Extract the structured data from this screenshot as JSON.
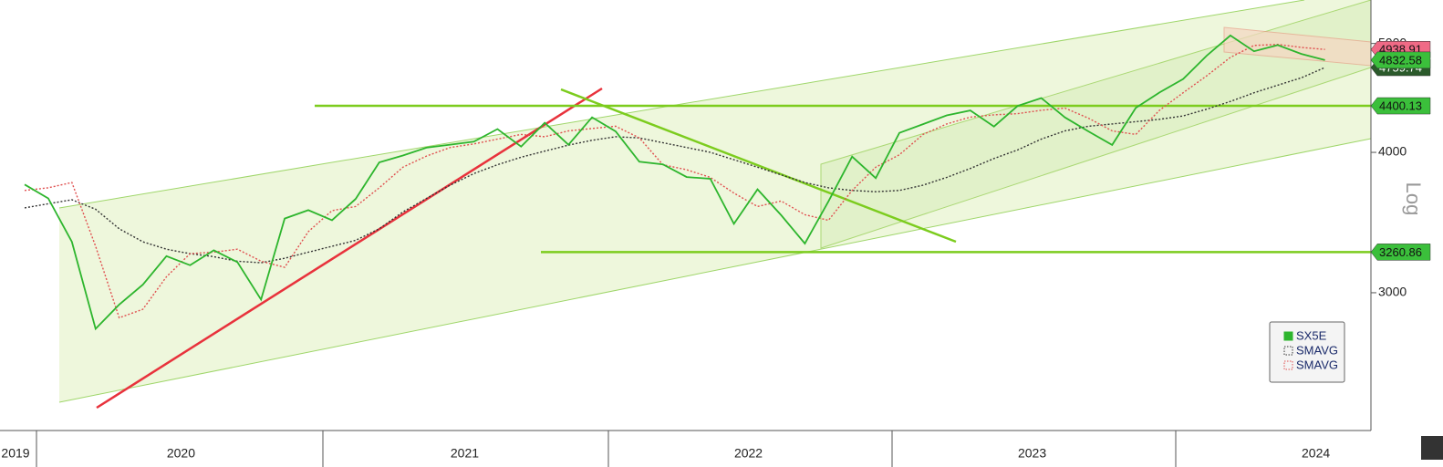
{
  "chart_data": {
    "type": "line",
    "y_label": "Log",
    "log_scale": true,
    "categories": [
      "2019",
      null,
      null,
      null,
      null,
      null,
      null,
      "2020",
      null,
      null,
      null,
      null,
      null,
      null,
      null,
      null,
      null,
      null,
      null,
      "2021",
      null,
      null,
      null,
      null,
      null,
      null,
      null,
      null,
      null,
      null,
      null,
      "2022",
      null,
      null,
      null,
      null,
      null,
      null,
      null,
      null,
      null,
      null,
      null,
      "2023",
      null,
      null,
      null,
      null,
      null,
      null,
      null,
      null,
      null,
      null,
      null,
      "2024"
    ],
    "series": [
      {
        "name": "SX5E",
        "color": "#2db52d",
        "values": [
          3745,
          3640,
          3330,
          2786,
          2928,
          3050,
          3234,
          3174,
          3273,
          3194,
          2958,
          3493,
          3553,
          3481,
          3636,
          3919,
          3974,
          4039,
          4064,
          4089,
          4196,
          4048,
          4250,
          4063,
          4298,
          4175,
          3924,
          3903,
          3803,
          3789,
          3455,
          3708,
          3517,
          3318,
          3618,
          3965,
          3794,
          4163,
          4238,
          4315,
          4359,
          4218,
          4399,
          4471,
          4297,
          4175,
          4061,
          4382,
          4522,
          4648,
          4877,
          5083,
          4921,
          4984,
          4894,
          4832.58
        ]
      },
      {
        "name": "SMAVG",
        "color": "#333333",
        "values": [
          3570,
          3600,
          3630,
          3560,
          3420,
          3330,
          3280,
          3250,
          3230,
          3200,
          3190,
          3220,
          3260,
          3300,
          3340,
          3420,
          3540,
          3640,
          3740,
          3830,
          3900,
          3960,
          4010,
          4060,
          4100,
          4130,
          4120,
          4080,
          4040,
          4000,
          3940,
          3880,
          3820,
          3760,
          3720,
          3700,
          3690,
          3700,
          3740,
          3800,
          3870,
          3950,
          4020,
          4110,
          4180,
          4220,
          4240,
          4260,
          4280,
          4310,
          4370,
          4440,
          4520,
          4590,
          4660,
          4759.74
        ]
      },
      {
        "name": "SMAVG",
        "color": "#e05050",
        "values": [
          3700,
          3720,
          3760,
          3300,
          2850,
          2900,
          3100,
          3250,
          3260,
          3280,
          3200,
          3160,
          3400,
          3550,
          3580,
          3720,
          3880,
          3970,
          4040,
          4070,
          4110,
          4150,
          4130,
          4180,
          4200,
          4220,
          4120,
          3900,
          3860,
          3800,
          3680,
          3580,
          3620,
          3520,
          3480,
          3700,
          3880,
          3980,
          4150,
          4240,
          4300,
          4320,
          4330,
          4360,
          4380,
          4290,
          4180,
          4150,
          4360,
          4520,
          4680,
          4860,
          4980,
          4990,
          4960,
          4938.91
        ]
      }
    ],
    "levels": [
      {
        "value": 4400.13,
        "color": "#7ccc1e"
      },
      {
        "value": 3260.86,
        "color": "#7ccc1e"
      }
    ],
    "ylim": [
      2262,
      5466
    ],
    "yticks": [
      3000,
      4000,
      5000
    ]
  }
}
